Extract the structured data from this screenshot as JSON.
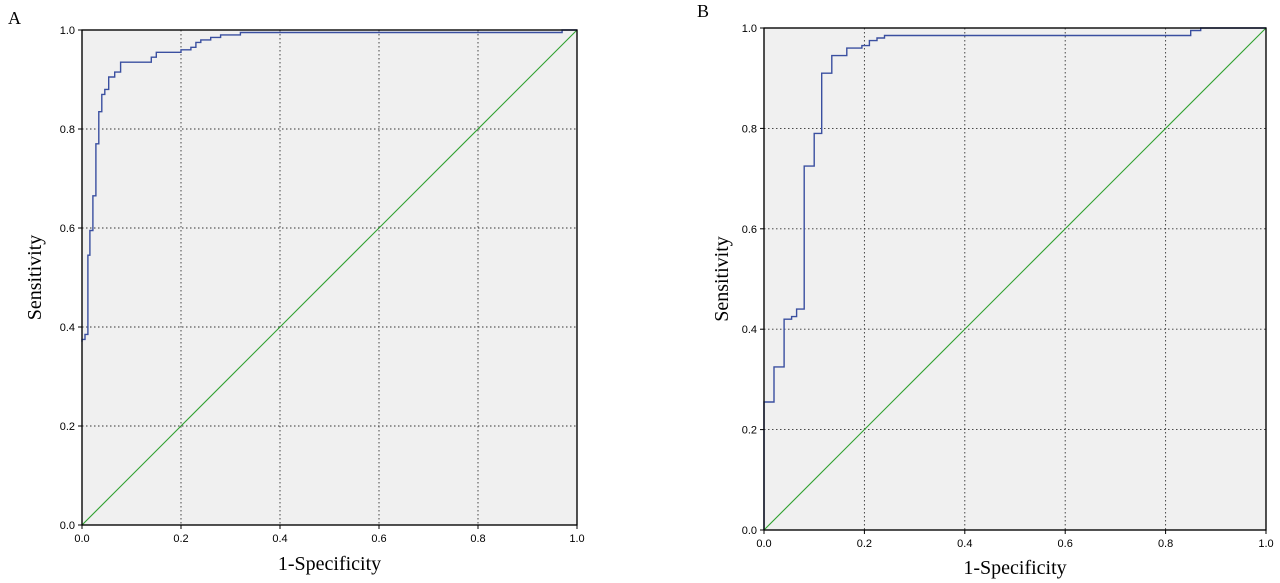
{
  "chart_data": [
    {
      "type": "line",
      "panel_label": "A",
      "xlabel": "1-Specificity",
      "ylabel": "Sensitivity",
      "xlim": [
        0,
        1
      ],
      "ylim": [
        0,
        1
      ],
      "x_ticks": [
        "0.0",
        "0.2",
        "0.4",
        "0.6",
        "0.8",
        "1.0"
      ],
      "y_ticks": [
        "0.0",
        "0.2",
        "0.4",
        "0.6",
        "0.8",
        "1.0"
      ],
      "grid": true,
      "colors": {
        "roc": "#3a4fa0",
        "reference": "#2fa02f",
        "background": "#f0f0f0"
      },
      "series": [
        {
          "x": [
            0.0,
            0.0,
            0.006,
            0.006,
            0.012,
            0.012,
            0.016,
            0.016,
            0.022,
            0.022,
            0.028,
            0.028,
            0.034,
            0.034,
            0.04,
            0.04,
            0.046,
            0.046,
            0.054,
            0.054,
            0.066,
            0.066,
            0.078,
            0.078,
            0.09,
            0.09,
            0.14,
            0.14,
            0.15,
            0.15,
            0.2,
            0.2,
            0.22,
            0.22,
            0.23,
            0.23,
            0.24,
            0.24,
            0.26,
            0.26,
            0.28,
            0.28,
            0.32,
            0.32,
            0.97,
            0.97,
            1.0
          ],
          "y": [
            0.37,
            0.375,
            0.375,
            0.385,
            0.385,
            0.545,
            0.545,
            0.595,
            0.595,
            0.665,
            0.665,
            0.77,
            0.77,
            0.835,
            0.835,
            0.87,
            0.87,
            0.88,
            0.88,
            0.905,
            0.905,
            0.915,
            0.915,
            0.935,
            0.935,
            0.935,
            0.935,
            0.945,
            0.945,
            0.955,
            0.955,
            0.96,
            0.96,
            0.965,
            0.965,
            0.975,
            0.975,
            0.98,
            0.98,
            0.985,
            0.985,
            0.99,
            0.99,
            0.995,
            0.995,
            1.0,
            1.0
          ]
        },
        {
          "x": [
            0,
            1
          ],
          "y": [
            0,
            1
          ]
        }
      ]
    },
    {
      "type": "line",
      "panel_label": "B",
      "xlabel": "1-Specificity",
      "ylabel": "Sensitivity",
      "xlim": [
        0,
        1
      ],
      "ylim": [
        0,
        1
      ],
      "x_ticks": [
        "0.0",
        "0.2",
        "0.4",
        "0.6",
        "0.8",
        "1.0"
      ],
      "y_ticks": [
        "0.0",
        "0.2",
        "0.4",
        "0.6",
        "0.8",
        "1.0"
      ],
      "grid": true,
      "colors": {
        "roc": "#3a4fa0",
        "reference": "#2fa02f",
        "background": "#f0f0f0"
      },
      "series": [
        {
          "x": [
            0.0,
            0.0,
            0.02,
            0.02,
            0.04,
            0.04,
            0.055,
            0.055,
            0.065,
            0.065,
            0.08,
            0.08,
            0.1,
            0.1,
            0.115,
            0.115,
            0.135,
            0.135,
            0.165,
            0.165,
            0.195,
            0.195,
            0.21,
            0.21,
            0.225,
            0.225,
            0.24,
            0.24,
            0.27,
            0.27,
            0.85,
            0.85,
            0.87,
            0.87,
            1.0
          ],
          "y": [
            0.0,
            0.255,
            0.255,
            0.325,
            0.325,
            0.42,
            0.42,
            0.425,
            0.425,
            0.44,
            0.44,
            0.725,
            0.725,
            0.79,
            0.79,
            0.91,
            0.91,
            0.945,
            0.945,
            0.96,
            0.96,
            0.965,
            0.965,
            0.975,
            0.975,
            0.98,
            0.98,
            0.985,
            0.985,
            0.985,
            0.985,
            0.995,
            0.995,
            1.0,
            1.0
          ]
        },
        {
          "x": [
            0,
            1
          ],
          "y": [
            0,
            1
          ]
        }
      ]
    }
  ]
}
